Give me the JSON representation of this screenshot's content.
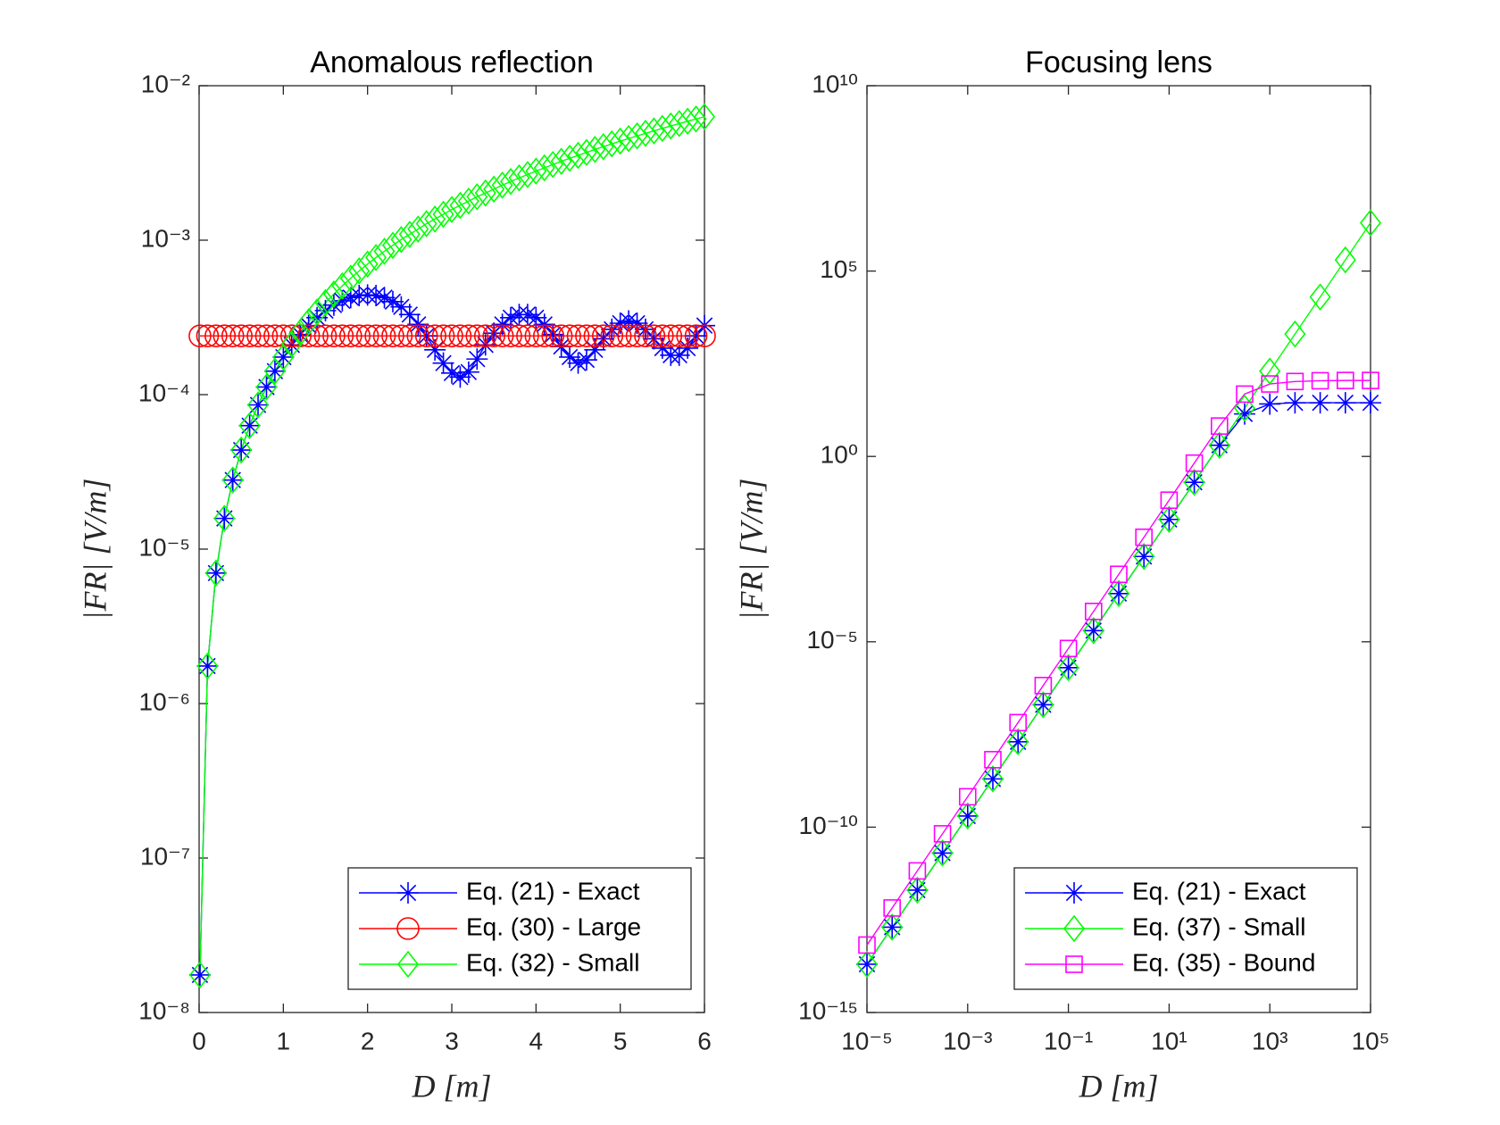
{
  "chart_data": [
    {
      "type": "line",
      "title": "Anomalous reflection",
      "xlabel": "D [m]",
      "ylabel": "|FR| [V/m]",
      "xscale": "linear",
      "yscale": "log",
      "legend": "lower right",
      "xlim": [
        0,
        6
      ],
      "xticks": [
        0,
        1,
        2,
        3,
        4,
        5,
        6
      ],
      "ylim": [
        1e-08,
        0.01
      ],
      "yticks": [
        {
          "value": 1e-08,
          "label": "10⁻⁸"
        },
        {
          "value": 1e-07,
          "label": "10⁻⁷"
        },
        {
          "value": 1e-06,
          "label": "10⁻⁶"
        },
        {
          "value": 1e-05,
          "label": "10⁻⁵"
        },
        {
          "value": 0.0001,
          "label": "10⁻⁴"
        },
        {
          "value": 0.001,
          "label": "10⁻³"
        },
        {
          "value": 0.01,
          "label": "10⁻²"
        }
      ],
      "x": [
        0.01,
        0.1,
        0.2,
        0.3,
        0.4,
        0.5,
        0.6,
        0.7,
        0.8,
        0.9,
        1.0,
        1.1,
        1.2,
        1.3,
        1.4,
        1.5,
        1.6,
        1.7,
        1.8,
        1.9,
        2.0,
        2.1,
        2.2,
        2.3,
        2.4,
        2.5,
        2.6,
        2.7,
        2.8,
        2.9,
        3.0,
        3.1,
        3.2,
        3.3,
        3.4,
        3.5,
        3.6,
        3.7,
        3.8,
        3.9,
        4.0,
        4.1,
        4.2,
        4.3,
        4.4,
        4.5,
        4.6,
        4.7,
        4.8,
        4.9,
        5.0,
        5.1,
        5.2,
        5.3,
        5.4,
        5.5,
        5.6,
        5.7,
        5.8,
        5.9,
        6.0
      ],
      "series": [
        {
          "name": "Eq. (21) - Exact",
          "color": "#0000ff",
          "marker": "star",
          "values": [
            1.75e-08,
            1.75e-06,
            7e-06,
            1.58e-05,
            2.8e-05,
            4.38e-05,
            6.3e-05,
            8.58e-05,
            0.000112,
            0.000142,
            0.000175,
            0.00021,
            0.000245,
            0.00028,
            0.000315,
            0.00035,
            0.00038,
            0.000405,
            0.000425,
            0.000438,
            0.000442,
            0.000438,
            0.000425,
            0.0004,
            0.00037,
            0.00033,
            0.000285,
            0.00024,
            0.000195,
            0.00016,
            0.000138,
            0.00013,
            0.00014,
            0.00017,
            0.00021,
            0.00025,
            0.000285,
            0.000315,
            0.00033,
            0.00033,
            0.000315,
            0.000285,
            0.000245,
            0.000205,
            0.000175,
            0.00016,
            0.000168,
            0.000195,
            0.00023,
            0.000265,
            0.00029,
            0.0003,
            0.00029,
            0.000265,
            0.00023,
            0.0002,
            0.00018,
            0.00018,
            0.0002,
            0.00024,
            0.00028
          ]
        },
        {
          "name": "Eq. (30) - Large",
          "color": "#ff0000",
          "marker": "circle",
          "values": [
            0.00024,
            0.00024,
            0.00024,
            0.00024,
            0.00024,
            0.00024,
            0.00024,
            0.00024,
            0.00024,
            0.00024,
            0.00024,
            0.00024,
            0.00024,
            0.00024,
            0.00024,
            0.00024,
            0.00024,
            0.00024,
            0.00024,
            0.00024,
            0.00024,
            0.00024,
            0.00024,
            0.00024,
            0.00024,
            0.00024,
            0.00024,
            0.00024,
            0.00024,
            0.00024,
            0.00024,
            0.00024,
            0.00024,
            0.00024,
            0.00024,
            0.00024,
            0.00024,
            0.00024,
            0.00024,
            0.00024,
            0.00024,
            0.00024,
            0.00024,
            0.00024,
            0.00024,
            0.00024,
            0.00024,
            0.00024,
            0.00024,
            0.00024,
            0.00024,
            0.00024,
            0.00024,
            0.00024,
            0.00024,
            0.00024,
            0.00024,
            0.00024,
            0.00024,
            0.00024,
            0.00024
          ]
        },
        {
          "name": "Eq. (32) - Small",
          "color": "#00ff00",
          "marker": "diamond",
          "values": [
            1.75e-08,
            1.75e-06,
            7e-06,
            1.58e-05,
            2.8e-05,
            4.38e-05,
            6.3e-05,
            8.58e-05,
            0.000112,
            0.000142,
            0.000175,
            0.000212,
            0.000252,
            0.000296,
            0.000343,
            0.000394,
            0.000448,
            0.000506,
            0.000567,
            0.000632,
            0.0007,
            0.000772,
            0.000847,
            0.000926,
            0.00101,
            0.00109,
            0.00118,
            0.00128,
            0.00137,
            0.00147,
            0.00158,
            0.00168,
            0.00179,
            0.00191,
            0.00202,
            0.00214,
            0.00227,
            0.0024,
            0.00253,
            0.00266,
            0.0028,
            0.00294,
            0.00309,
            0.00324,
            0.00339,
            0.00354,
            0.0037,
            0.00387,
            0.00403,
            0.0042,
            0.00438,
            0.00455,
            0.00473,
            0.00492,
            0.0051,
            0.00529,
            0.00549,
            0.00569,
            0.00589,
            0.00609,
            0.0063
          ]
        }
      ]
    },
    {
      "type": "line",
      "title": "Focusing lens",
      "xlabel": "D [m]",
      "ylabel": "|FR| [V/m]",
      "xscale": "log",
      "yscale": "log",
      "legend": "lower right",
      "xlim": [
        1e-05,
        100000
      ],
      "xticks": [
        {
          "value": 1e-05,
          "label": "10⁻⁵"
        },
        {
          "value": 0.001,
          "label": "10⁻³"
        },
        {
          "value": 0.1,
          "label": "10⁻¹"
        },
        {
          "value": 10,
          "label": "10¹"
        },
        {
          "value": 1000,
          "label": "10³"
        },
        {
          "value": 100000,
          "label": "10⁵"
        }
      ],
      "ylim": [
        1e-15,
        10000000000.0
      ],
      "yticks": [
        {
          "value": 1e-15,
          "label": "10⁻¹⁵"
        },
        {
          "value": 1e-10,
          "label": "10⁻¹⁰"
        },
        {
          "value": 1e-05,
          "label": "10⁻⁵"
        },
        {
          "value": 1,
          "label": "10⁰"
        },
        {
          "value": 100000,
          "label": "10⁵"
        },
        {
          "value": 10000000000.0,
          "label": "10¹⁰"
        }
      ],
      "x": [
        1e-05,
        3.162e-05,
        0.0001,
        0.0003162,
        0.001,
        0.003162,
        0.01,
        0.03162,
        0.1,
        0.3162,
        1,
        3.162,
        10,
        31.62,
        100,
        316.2,
        1000,
        3162,
        10000,
        31620,
        100000
      ],
      "series": [
        {
          "name": "Eq. (21) - Exact",
          "color": "#0000ff",
          "marker": "star",
          "values": [
            2e-14,
            2e-13,
            2e-12,
            2e-11,
            2e-10,
            2e-09,
            2e-08,
            2e-07,
            2e-06,
            2e-05,
            0.0002,
            0.002,
            0.02,
            0.2,
            2,
            14,
            26,
            28,
            28,
            28,
            28
          ]
        },
        {
          "name": "Eq. (37) - Small",
          "color": "#00ff00",
          "marker": "diamond",
          "values": [
            2e-14,
            2e-13,
            2e-12,
            2e-11,
            2e-10,
            2e-09,
            2e-08,
            2e-07,
            2e-06,
            2e-05,
            0.0002,
            0.002,
            0.02,
            0.2,
            2,
            20,
            200,
            2000,
            20000,
            200000,
            2000000
          ]
        },
        {
          "name": "Eq. (35) - Bound",
          "color": "#ff00ff",
          "marker": "square",
          "values": [
            6.6e-14,
            6.6e-13,
            6.6e-12,
            6.6e-11,
            6.6e-10,
            6.6e-09,
            6.6e-08,
            6.6e-07,
            6.6e-06,
            6.6e-05,
            0.00066,
            0.0066,
            0.066,
            0.66,
            6.6,
            48,
            90,
            105,
            110,
            112,
            112
          ]
        }
      ]
    }
  ]
}
